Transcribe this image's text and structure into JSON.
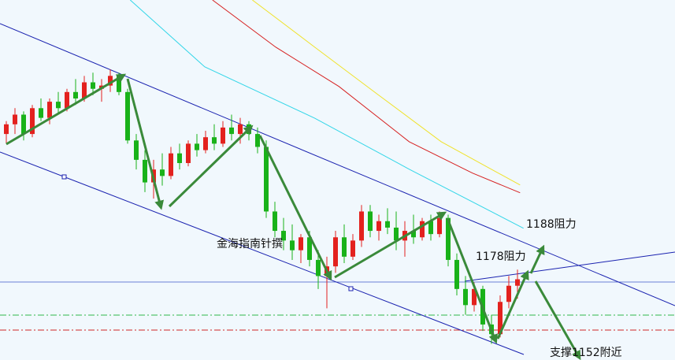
{
  "chart_data": {
    "type": "candlestick",
    "ylim": [
      1146,
      1257.5
    ],
    "up_color": "#e3211e",
    "down_color": "#19b219",
    "values": [
      [
        1216,
        1220,
        1213,
        1219
      ],
      [
        1219,
        1224,
        1216,
        1222
      ],
      [
        1222,
        1223,
        1214,
        1216
      ],
      [
        1216,
        1225,
        1215,
        1224
      ],
      [
        1224,
        1227,
        1220,
        1221
      ],
      [
        1221,
        1227,
        1219,
        1226
      ],
      [
        1226,
        1229,
        1222,
        1224
      ],
      [
        1224,
        1230,
        1223,
        1229
      ],
      [
        1229,
        1233,
        1225,
        1227
      ],
      [
        1227,
        1234,
        1226,
        1232
      ],
      [
        1232,
        1235,
        1228,
        1230
      ],
      [
        1230,
        1233,
        1226,
        1231
      ],
      [
        1231,
        1236,
        1229,
        1234
      ],
      [
        1234,
        1235,
        1228,
        1229
      ],
      [
        1229,
        1230,
        1213,
        1214
      ],
      [
        1214,
        1216,
        1205,
        1208
      ],
      [
        1208,
        1211,
        1198,
        1201
      ],
      [
        1201,
        1208,
        1196,
        1205
      ],
      [
        1205,
        1210,
        1200,
        1203
      ],
      [
        1203,
        1212,
        1202,
        1210
      ],
      [
        1210,
        1213,
        1205,
        1207
      ],
      [
        1207,
        1214,
        1206,
        1213
      ],
      [
        1213,
        1216,
        1209,
        1211
      ],
      [
        1211,
        1217,
        1210,
        1215
      ],
      [
        1215,
        1219,
        1211,
        1213
      ],
      [
        1213,
        1220,
        1212,
        1218
      ],
      [
        1218,
        1222,
        1214,
        1216
      ],
      [
        1216,
        1221,
        1213,
        1219
      ],
      [
        1219,
        1220,
        1214,
        1216
      ],
      [
        1216,
        1218,
        1210,
        1212
      ],
      [
        1212,
        1214,
        1190,
        1192
      ],
      [
        1192,
        1195,
        1184,
        1186
      ],
      [
        1186,
        1190,
        1180,
        1183
      ],
      [
        1183,
        1188,
        1177,
        1180
      ],
      [
        1180,
        1185,
        1176,
        1184
      ],
      [
        1184,
        1186,
        1175,
        1177
      ],
      [
        1177,
        1180,
        1168,
        1172
      ],
      [
        1172,
        1178,
        1162,
        1175
      ],
      [
        1175,
        1186,
        1173,
        1184
      ],
      [
        1184,
        1188,
        1176,
        1178
      ],
      [
        1178,
        1185,
        1177,
        1183
      ],
      [
        1183,
        1194,
        1181,
        1192
      ],
      [
        1192,
        1194,
        1184,
        1186
      ],
      [
        1186,
        1191,
        1183,
        1189
      ],
      [
        1189,
        1193,
        1185,
        1187
      ],
      [
        1187,
        1192,
        1180,
        1183
      ],
      [
        1183,
        1189,
        1178,
        1186
      ],
      [
        1186,
        1191,
        1182,
        1184
      ],
      [
        1184,
        1190,
        1183,
        1189
      ],
      [
        1189,
        1191,
        1183,
        1185
      ],
      [
        1185,
        1192,
        1184,
        1190
      ],
      [
        1190,
        1191,
        1175,
        1177
      ],
      [
        1177,
        1179,
        1166,
        1168
      ],
      [
        1168,
        1172,
        1160,
        1163
      ],
      [
        1163,
        1170,
        1161,
        1168
      ],
      [
        1168,
        1169,
        1155,
        1157
      ],
      [
        1157,
        1160,
        1151,
        1154
      ],
      [
        1154,
        1166,
        1153,
        1164
      ],
      [
        1164,
        1172,
        1162,
        1169
      ],
      [
        1169,
        1174,
        1165,
        1171
      ]
    ],
    "lines": [
      {
        "color": "#33d6e8",
        "x": [
          14.3,
          22.9,
          35.6,
          46.5,
          59.7
        ],
        "values": [
          1257.5,
          1236.8,
          1220.9,
          1205.1,
          1186.8
        ]
      },
      {
        "color": "#d62020",
        "x": [
          23.8,
          31.1,
          38.4,
          46.5,
          53.8,
          59.3
        ],
        "values": [
          1257.5,
          1242.9,
          1230.7,
          1213.6,
          1203.9,
          1197.8
        ]
      },
      {
        "color": "#f0e22a",
        "x": [
          28.4,
          35.6,
          42.9,
          50.2,
          59.3
        ],
        "values": [
          1257.5,
          1242.9,
          1228.2,
          1213.6,
          1200.2
        ]
      }
    ],
    "annotations": [
      "1188阻力",
      "1178阻力",
      "金海指南针撰",
      "支撑1152附近"
    ]
  }
}
